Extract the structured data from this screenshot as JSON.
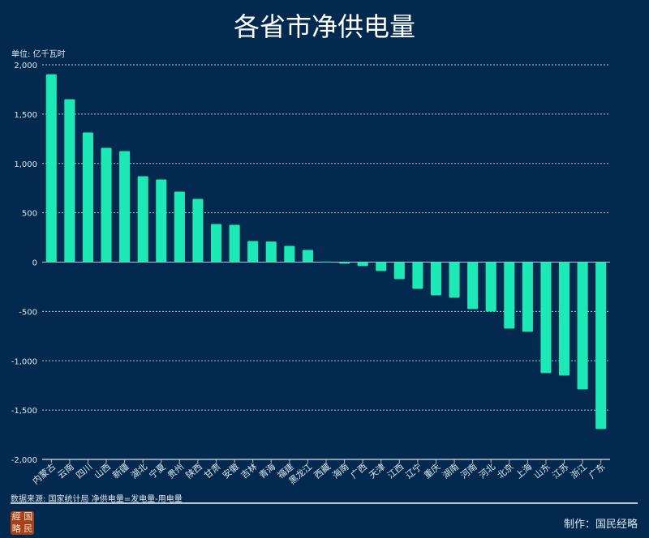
{
  "chart_data": {
    "type": "bar",
    "title": "各省市净供电量",
    "ylabel": "单位: 亿千瓦时",
    "ylim": [
      -2000,
      2000
    ],
    "yticks": [
      2000,
      1500,
      1000,
      500,
      0,
      -500,
      -1000,
      -1500,
      -2000
    ],
    "ytick_labels": [
      "2,000",
      "1,500",
      "1,000",
      "500",
      "0",
      "-500",
      "-1,000",
      "-1,500",
      "-2,000"
    ],
    "grid": true,
    "bar_color": "#1de9b6",
    "categories": [
      "内蒙古",
      "云南",
      "四川",
      "山西",
      "新疆",
      "湖北",
      "宁夏",
      "贵州",
      "陕西",
      "甘肃",
      "安徽",
      "吉林",
      "青海",
      "福建",
      "黑龙江",
      "西藏",
      "海南",
      "广西",
      "天津",
      "江西",
      "辽宁",
      "重庆",
      "湖南",
      "河南",
      "河北",
      "北京",
      "上海",
      "山东",
      "江苏",
      "浙江",
      "广东"
    ],
    "values": [
      1905,
      1651,
      1314,
      1158,
      1125,
      871,
      838,
      715,
      641,
      386,
      378,
      214,
      208,
      164,
      123,
      5,
      -15,
      -40,
      -90,
      -172,
      -271,
      -337,
      -361,
      -476,
      -501,
      -673,
      -706,
      -1125,
      -1150,
      -1290,
      -1692
    ]
  },
  "footer": {
    "source": "数据来源: 国家统计局    净供电量=发电量-用电量",
    "credit": "制作：国民经略",
    "logo_text": "国民经略"
  }
}
